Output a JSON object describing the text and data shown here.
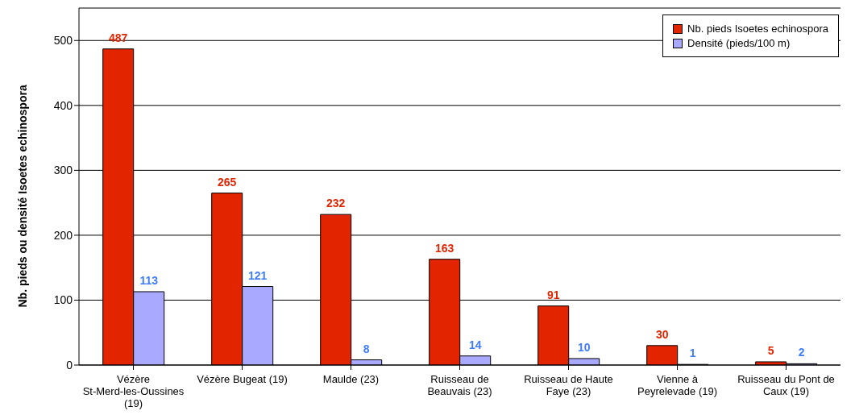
{
  "chart_data": {
    "type": "bar",
    "ylabel": "Nb. pieds ou densité Isoetes echinospora",
    "categories": [
      "Vézère St-Merd-les-Oussines (19)",
      "Vézère Bugeat (19)",
      "Maulde (23)",
      "Ruisseau de Beauvais (23)",
      "Ruisseau de Haute Faye (23)",
      "Vienne à Peyrelevade (19)",
      "Ruisseau du Pont de Caux (19)"
    ],
    "series": [
      {
        "name": "Nb. pieds Isoetes echinospora",
        "color": "#e32400",
        "values": [
          487,
          265,
          232,
          163,
          91,
          30,
          5
        ]
      },
      {
        "name": "Densité (pieds/100 m)",
        "color": "#a9a9ff",
        "values": [
          113,
          121,
          8,
          14,
          10,
          1,
          2
        ]
      }
    ],
    "ylim": [
      0,
      550
    ],
    "yticks": [
      0,
      100,
      200,
      300,
      400,
      500
    ],
    "grid": "y",
    "legend": "top right",
    "data_labels": true
  }
}
